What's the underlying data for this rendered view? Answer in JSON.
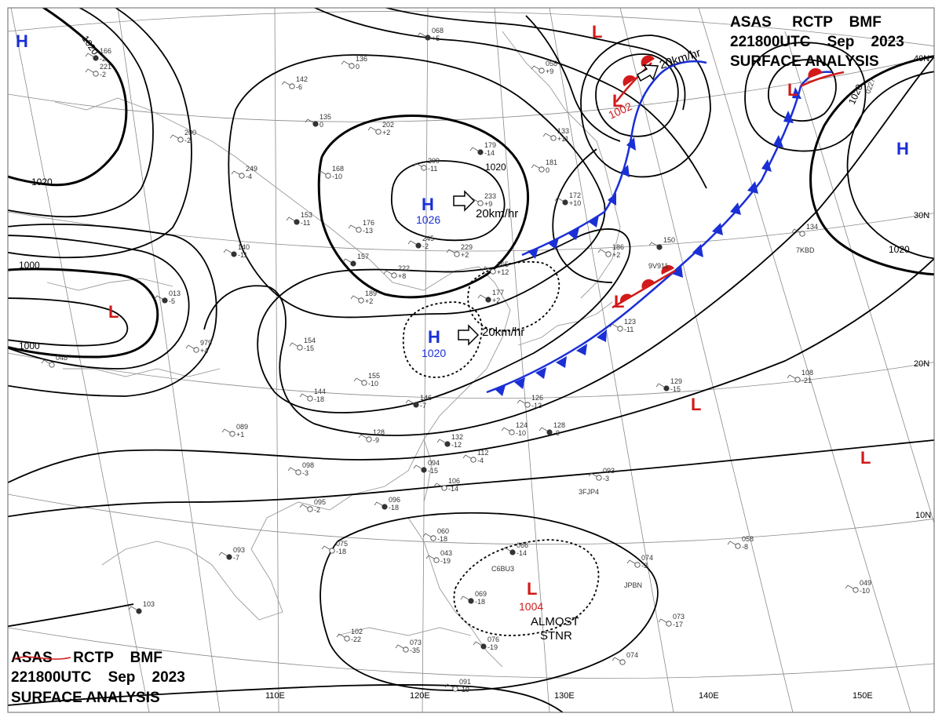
{
  "header": {
    "line1": "ASAS     RCTP    BMF",
    "line2": "221800UTC    Sep    2023",
    "line3": "SURFACE ANALYSIS"
  },
  "longitude_labels": [
    "110E",
    "120E",
    "130E",
    "140E",
    "150E"
  ],
  "latitude_labels": [
    "40N",
    "30N",
    "20N",
    "10N"
  ],
  "isobar_labels": [
    "1020",
    "1020",
    "1020",
    "1020",
    "1020",
    "1000",
    "1000"
  ],
  "centers": [
    {
      "type": "H",
      "color": "#1a2fd6",
      "value": ""
    },
    {
      "type": "L",
      "color": "#d21a1a",
      "value": ""
    },
    {
      "type": "H",
      "color": "#1a2fd6",
      "value": "1026"
    },
    {
      "type": "H",
      "color": "#1a2fd6",
      "value": "1020"
    },
    {
      "type": "L",
      "color": "#d21a1a",
      "value": ""
    },
    {
      "type": "L",
      "color": "#d21a1a",
      "value": "1002"
    },
    {
      "type": "L",
      "color": "#d21a1a",
      "value": ""
    },
    {
      "type": "H",
      "color": "#1a2fd6",
      "value": ""
    },
    {
      "type": "L",
      "color": "#d21a1a",
      "value": ""
    },
    {
      "type": "L",
      "color": "#d21a1a",
      "value": ""
    },
    {
      "type": "L",
      "color": "#d21a1a",
      "value": ""
    },
    {
      "type": "L",
      "color": "#d21a1a",
      "value": "1004"
    }
  ],
  "motions": [
    "20km/hr",
    "20km/hr",
    "20km/hr"
  ],
  "note": {
    "line1": "ALMOST",
    "line2": "STNR"
  },
  "stations": [
    {
      "t": "068",
      "v": "+5"
    },
    {
      "t": "136",
      "v": "0"
    },
    {
      "t": "142",
      "v": "-6"
    },
    {
      "t": "135",
      "v": "0"
    },
    {
      "t": "202",
      "v": "+2"
    },
    {
      "t": "209",
      "v": "-11"
    },
    {
      "t": "179",
      "v": "-14"
    },
    {
      "t": "249",
      "v": "-4"
    },
    {
      "t": "168",
      "v": "-10"
    },
    {
      "t": "153",
      "v": "-11"
    },
    {
      "t": "176",
      "v": "-13"
    },
    {
      "t": "233",
      "v": "+9"
    },
    {
      "t": "245",
      "v": "-2"
    },
    {
      "t": "229",
      "v": "+2"
    },
    {
      "t": "222",
      "v": "+8"
    },
    {
      "t": "157",
      "v": ""
    },
    {
      "t": "189",
      "v": "+2"
    },
    {
      "t": "165",
      "v": "+12"
    },
    {
      "t": "177",
      "v": "+2"
    },
    {
      "t": "154",
      "v": "-15"
    },
    {
      "t": "979",
      "v": "+4"
    },
    {
      "t": "013",
      "v": "-5"
    },
    {
      "t": "155",
      "v": "-10"
    },
    {
      "t": "144",
      "v": "-18"
    },
    {
      "t": "146",
      "v": "-7"
    },
    {
      "t": "126",
      "v": "-12"
    },
    {
      "t": "124",
      "v": "-10"
    },
    {
      "t": "128",
      "v": "-9"
    },
    {
      "t": "089",
      "v": "+1"
    },
    {
      "t": "128",
      "v": "-9"
    },
    {
      "t": "132",
      "v": "-12"
    },
    {
      "t": "112",
      "v": "-4"
    },
    {
      "t": "098",
      "v": "-3"
    },
    {
      "t": "094",
      "v": "-15"
    },
    {
      "t": "106",
      "v": "-14"
    },
    {
      "t": "095",
      "v": "-2"
    },
    {
      "t": "096",
      "v": "-18"
    },
    {
      "t": "093",
      "v": "-3"
    },
    {
      "t": "075",
      "v": "-18"
    },
    {
      "t": "093",
      "v": "-7"
    },
    {
      "t": "060",
      "v": "-18"
    },
    {
      "t": "043",
      "v": "-19"
    },
    {
      "t": "066",
      "v": "-14"
    },
    {
      "t": "058",
      "v": "-8"
    },
    {
      "t": "074",
      "v": "-3"
    },
    {
      "t": "069",
      "v": "-18"
    },
    {
      "t": "073",
      "v": "-17"
    },
    {
      "t": "049",
      "v": "-10"
    },
    {
      "t": "103",
      "v": ""
    },
    {
      "t": "102",
      "v": "-22"
    },
    {
      "t": "073",
      "v": "-35"
    },
    {
      "t": "076",
      "v": "-19"
    },
    {
      "t": "074",
      "v": ""
    },
    {
      "t": "091",
      "v": "-19"
    },
    {
      "t": "150",
      "v": ""
    },
    {
      "t": "186",
      "v": "+2"
    },
    {
      "t": "123",
      "v": "-11"
    },
    {
      "t": "129",
      "v": "-15"
    },
    {
      "t": "108",
      "v": "-21"
    },
    {
      "t": "133",
      "v": "+11"
    },
    {
      "t": "172",
      "v": "+10"
    },
    {
      "t": "181",
      "v": "0"
    },
    {
      "t": "058",
      "v": "+9"
    },
    {
      "t": "166",
      "v": "-2"
    },
    {
      "t": "221",
      "v": "-2"
    },
    {
      "t": "200",
      "v": "-2"
    },
    {
      "t": "140",
      "v": "-11"
    },
    {
      "t": "048",
      "v": ""
    },
    {
      "t": "134",
      "v": ""
    }
  ],
  "callsigns": [
    "9V911",
    "7KBD",
    "3FJP4",
    "C6BU3",
    "JPBN",
    "0227"
  ]
}
